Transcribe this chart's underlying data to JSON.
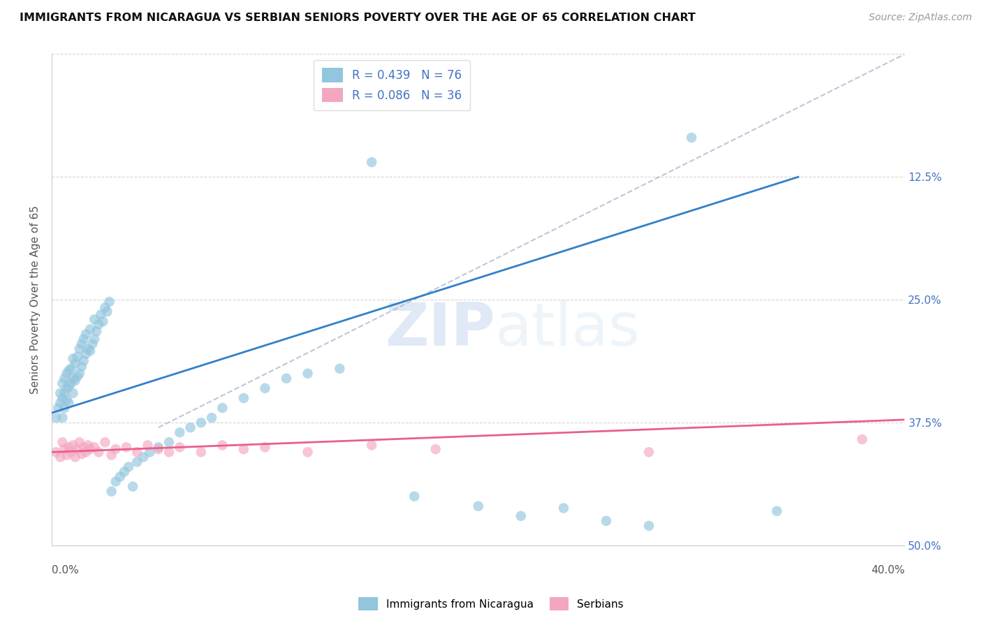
{
  "title": "IMMIGRANTS FROM NICARAGUA VS SERBIAN SENIORS POVERTY OVER THE AGE OF 65 CORRELATION CHART",
  "source": "Source: ZipAtlas.com",
  "ylabel": "Seniors Poverty Over the Age of 65",
  "watermark": "ZIPatlas",
  "legend1_R": "R = 0.439",
  "legend1_N": "N = 76",
  "legend2_R": "R = 0.086",
  "legend2_N": "N = 36",
  "blue_color": "#92c5de",
  "pink_color": "#f4a6c0",
  "blue_line_color": "#3080c8",
  "pink_line_color": "#e8608a",
  "dashed_line_color": "#b0b8d0",
  "xlim": [
    0.0,
    0.4
  ],
  "ylim": [
    0.0,
    0.5
  ],
  "nicaragua_x": [
    0.002,
    0.003,
    0.004,
    0.004,
    0.005,
    0.005,
    0.005,
    0.006,
    0.006,
    0.006,
    0.007,
    0.007,
    0.007,
    0.008,
    0.008,
    0.008,
    0.009,
    0.009,
    0.01,
    0.01,
    0.01,
    0.011,
    0.011,
    0.012,
    0.012,
    0.013,
    0.013,
    0.014,
    0.014,
    0.015,
    0.015,
    0.016,
    0.016,
    0.017,
    0.018,
    0.018,
    0.019,
    0.02,
    0.02,
    0.021,
    0.022,
    0.023,
    0.024,
    0.025,
    0.026,
    0.027,
    0.028,
    0.03,
    0.032,
    0.034,
    0.036,
    0.038,
    0.04,
    0.043,
    0.046,
    0.05,
    0.055,
    0.06,
    0.065,
    0.07,
    0.075,
    0.08,
    0.09,
    0.1,
    0.11,
    0.12,
    0.135,
    0.15,
    0.17,
    0.2,
    0.22,
    0.24,
    0.26,
    0.28,
    0.3,
    0.34
  ],
  "nicaragua_y": [
    0.13,
    0.14,
    0.145,
    0.155,
    0.13,
    0.15,
    0.165,
    0.14,
    0.155,
    0.17,
    0.148,
    0.16,
    0.175,
    0.145,
    0.162,
    0.178,
    0.165,
    0.18,
    0.155,
    0.17,
    0.19,
    0.168,
    0.185,
    0.172,
    0.192,
    0.175,
    0.2,
    0.182,
    0.205,
    0.188,
    0.21,
    0.195,
    0.215,
    0.2,
    0.198,
    0.22,
    0.205,
    0.21,
    0.23,
    0.218,
    0.225,
    0.235,
    0.228,
    0.242,
    0.238,
    0.248,
    0.055,
    0.065,
    0.07,
    0.075,
    0.08,
    0.06,
    0.085,
    0.09,
    0.095,
    0.1,
    0.105,
    0.115,
    0.12,
    0.125,
    0.13,
    0.14,
    0.15,
    0.16,
    0.17,
    0.175,
    0.18,
    0.39,
    0.05,
    0.04,
    0.03,
    0.038,
    0.025,
    0.02,
    0.415,
    0.035
  ],
  "serbian_x": [
    0.002,
    0.004,
    0.005,
    0.006,
    0.007,
    0.008,
    0.009,
    0.01,
    0.011,
    0.012,
    0.013,
    0.014,
    0.015,
    0.016,
    0.017,
    0.018,
    0.02,
    0.022,
    0.025,
    0.028,
    0.03,
    0.035,
    0.04,
    0.045,
    0.05,
    0.055,
    0.06,
    0.07,
    0.08,
    0.09,
    0.1,
    0.12,
    0.15,
    0.18,
    0.28,
    0.38
  ],
  "serbian_y": [
    0.095,
    0.09,
    0.105,
    0.098,
    0.092,
    0.1,
    0.095,
    0.102,
    0.09,
    0.098,
    0.105,
    0.093,
    0.1,
    0.095,
    0.102,
    0.098,
    0.1,
    0.095,
    0.105,
    0.092,
    0.098,
    0.1,
    0.095,
    0.102,
    0.098,
    0.095,
    0.1,
    0.095,
    0.102,
    0.098,
    0.1,
    0.095,
    0.102,
    0.098,
    0.095,
    0.108
  ]
}
